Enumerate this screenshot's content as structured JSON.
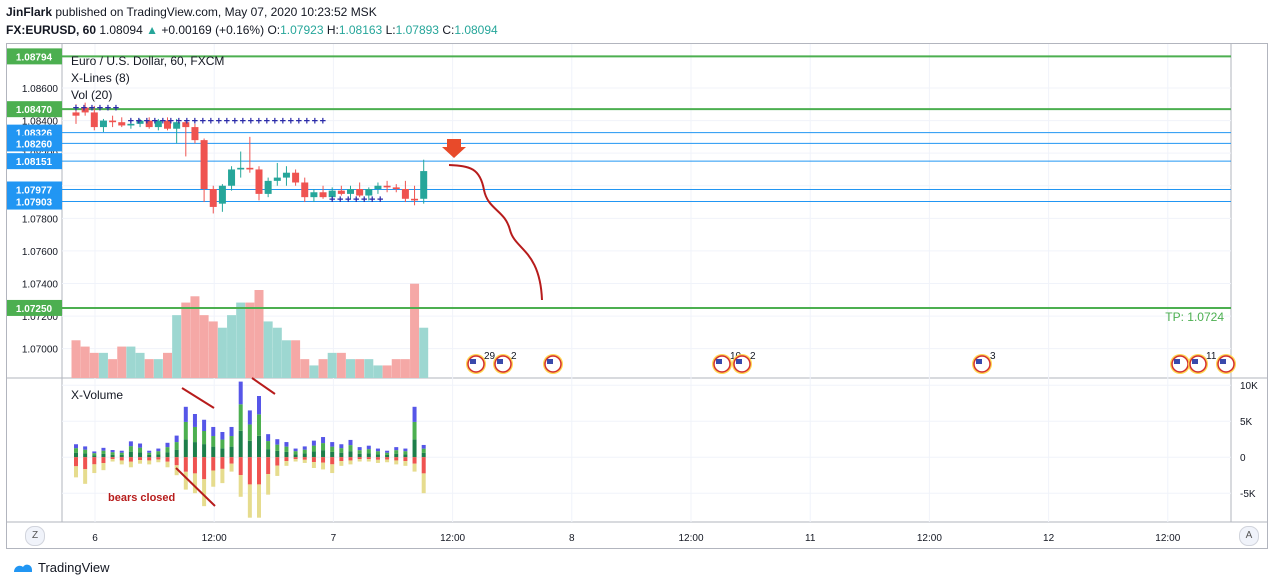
{
  "header": {
    "user": "JinFlark",
    "published_text": "published on TradingView.com, May 07, 2020 10:23:52 MSK",
    "symbol": "FX:EURUSD, 60",
    "last": "1.08094",
    "change": "+0.00169 (+0.16%)",
    "o_label": "O:",
    "o": "1.07923",
    "h_label": "H:",
    "h": "1.08163",
    "l_label": "L:",
    "l": "1.07893",
    "c_label": "C:",
    "c": "1.08094"
  },
  "legend": {
    "main": "Euro / U.S. Dollar, 60, FXCM",
    "xlines": "X-Lines (8)",
    "vol": "Vol (20)",
    "xvolume": "X-Volume"
  },
  "annotations": {
    "tp_label": "TP: 1.0724",
    "bears_closed": "bears closed"
  },
  "colors": {
    "bull": "#26a69a",
    "bear": "#ef5350",
    "level_green": "#4caf50",
    "level_blue": "#2196f3",
    "curve": "#b71c1c",
    "arrow": "#e84a2a"
  },
  "footer": {
    "brand": "TradingView"
  },
  "buttons": {
    "left": "Z",
    "right": "A"
  },
  "chart_data": [
    {
      "type": "candlestick",
      "title": "Euro / U.S. Dollar, 60, FXCM",
      "x_ticks": [
        "6",
        "12:00",
        "7",
        "12:00",
        "8",
        "12:00",
        "11",
        "12:00",
        "12",
        "12:00"
      ],
      "y_ticks": [
        "1.08600",
        "1.08400",
        "1.08200",
        "1.08000",
        "1.07800",
        "1.07600",
        "1.07400",
        "1.07200",
        "1.07000"
      ],
      "ylim": [
        1.0682,
        1.0887
      ],
      "price_levels_green": [
        "1.08794",
        "1.08470",
        "1.07250"
      ],
      "price_levels_blue": [
        "1.08326",
        "1.08260",
        "1.08151",
        "1.07977",
        "1.07903"
      ],
      "candles": [
        {
          "o": 1.0845,
          "h": 1.085,
          "l": 1.0838,
          "c": 1.0843
        },
        {
          "o": 1.0848,
          "h": 1.0851,
          "l": 1.0843,
          "c": 1.0845
        },
        {
          "o": 1.0845,
          "h": 1.0849,
          "l": 1.0834,
          "c": 1.0836
        },
        {
          "o": 1.0836,
          "h": 1.0841,
          "l": 1.0833,
          "c": 1.084
        },
        {
          "o": 1.084,
          "h": 1.0843,
          "l": 1.0836,
          "c": 1.0839
        },
        {
          "o": 1.0839,
          "h": 1.0842,
          "l": 1.0836,
          "c": 1.0837
        },
        {
          "o": 1.0837,
          "h": 1.0841,
          "l": 1.0835,
          "c": 1.0838
        },
        {
          "o": 1.0838,
          "h": 1.0841,
          "l": 1.0836,
          "c": 1.084
        },
        {
          "o": 1.084,
          "h": 1.0842,
          "l": 1.0835,
          "c": 1.0836
        },
        {
          "o": 1.0836,
          "h": 1.0841,
          "l": 1.0834,
          "c": 1.084
        },
        {
          "o": 1.084,
          "h": 1.0842,
          "l": 1.0834,
          "c": 1.0835
        },
        {
          "o": 1.0835,
          "h": 1.0841,
          "l": 1.0826,
          "c": 1.0839
        },
        {
          "o": 1.0839,
          "h": 1.084,
          "l": 1.0818,
          "c": 1.0836
        },
        {
          "o": 1.0836,
          "h": 1.0838,
          "l": 1.0826,
          "c": 1.0828
        },
        {
          "o": 1.0828,
          "h": 1.0829,
          "l": 1.079,
          "c": 1.0798
        },
        {
          "o": 1.0798,
          "h": 1.08,
          "l": 1.0783,
          "c": 1.0787
        },
        {
          "o": 1.0789,
          "h": 1.0801,
          "l": 1.0784,
          "c": 1.08
        },
        {
          "o": 1.08,
          "h": 1.0812,
          "l": 1.0797,
          "c": 1.081
        },
        {
          "o": 1.081,
          "h": 1.0821,
          "l": 1.0805,
          "c": 1.0811
        },
        {
          "o": 1.0811,
          "h": 1.083,
          "l": 1.0808,
          "c": 1.081
        },
        {
          "o": 1.081,
          "h": 1.0812,
          "l": 1.0791,
          "c": 1.0795
        },
        {
          "o": 1.0795,
          "h": 1.0805,
          "l": 1.0793,
          "c": 1.0803
        },
        {
          "o": 1.0803,
          "h": 1.0814,
          "l": 1.08,
          "c": 1.0805
        },
        {
          "o": 1.0805,
          "h": 1.0812,
          "l": 1.08,
          "c": 1.0808
        },
        {
          "o": 1.0808,
          "h": 1.081,
          "l": 1.08,
          "c": 1.0802
        },
        {
          "o": 1.0802,
          "h": 1.0805,
          "l": 1.079,
          "c": 1.0793
        },
        {
          "o": 1.0793,
          "h": 1.0798,
          "l": 1.079,
          "c": 1.0796
        },
        {
          "o": 1.0796,
          "h": 1.08,
          "l": 1.0792,
          "c": 1.0793
        },
        {
          "o": 1.0793,
          "h": 1.0799,
          "l": 1.0791,
          "c": 1.0797
        },
        {
          "o": 1.0797,
          "h": 1.08,
          "l": 1.0794,
          "c": 1.0795
        },
        {
          "o": 1.0795,
          "h": 1.08,
          "l": 1.0792,
          "c": 1.0798
        },
        {
          "o": 1.0798,
          "h": 1.0802,
          "l": 1.0793,
          "c": 1.0794
        },
        {
          "o": 1.0794,
          "h": 1.0799,
          "l": 1.0791,
          "c": 1.0798
        },
        {
          "o": 1.0798,
          "h": 1.0802,
          "l": 1.0795,
          "c": 1.08
        },
        {
          "o": 1.08,
          "h": 1.0803,
          "l": 1.0796,
          "c": 1.0799
        },
        {
          "o": 1.0799,
          "h": 1.0801,
          "l": 1.0796,
          "c": 1.0798
        },
        {
          "o": 1.0798,
          "h": 1.0803,
          "l": 1.079,
          "c": 1.0792
        },
        {
          "o": 1.0792,
          "h": 1.08,
          "l": 1.0788,
          "c": 1.0791
        },
        {
          "o": 1.0792,
          "h": 1.0816,
          "l": 1.0789,
          "c": 1.0809
        }
      ],
      "volume": [
        6,
        5,
        4,
        4,
        3,
        5,
        5,
        4,
        3,
        3,
        4,
        10,
        12,
        13,
        10,
        9,
        8,
        10,
        12,
        12,
        14,
        9,
        8,
        6,
        6,
        3,
        2,
        3,
        4,
        4,
        3,
        3,
        3,
        2,
        2,
        3,
        3,
        15,
        8
      ],
      "xvolume_ticks": [
        "10K",
        "5K",
        "0",
        "-5K"
      ],
      "xvolume_ylim": [
        -9000,
        11000
      ],
      "xvolume_pos": [
        1800,
        1500,
        800,
        1300,
        1000,
        900,
        2200,
        1900,
        900,
        1200,
        2000,
        3000,
        7000,
        6000,
        5200,
        4200,
        3500,
        4200,
        10500,
        6500,
        8500,
        3200,
        2500,
        2100,
        1200,
        1500,
        2300,
        2800,
        2100,
        1800,
        2400,
        1400,
        1600,
        1200,
        900,
        1400,
        1200,
        7000,
        1700
      ],
      "xvolume_neg": [
        -2800,
        -3700,
        -2200,
        -1800,
        -600,
        -1000,
        -1400,
        -900,
        -1000,
        -700,
        -1400,
        -2500,
        -4500,
        -5000,
        -6800,
        -4100,
        -3600,
        -2000,
        -5500,
        -8400,
        -8400,
        -5200,
        -2600,
        -1200,
        -600,
        -800,
        -1500,
        -1700,
        -2200,
        -1200,
        -1000,
        -600,
        -600,
        -800,
        -700,
        -1000,
        -1200,
        -2000,
        -5000
      ],
      "event_labels": [
        "29",
        "2",
        "10",
        "2",
        "3",
        "11"
      ]
    }
  ]
}
